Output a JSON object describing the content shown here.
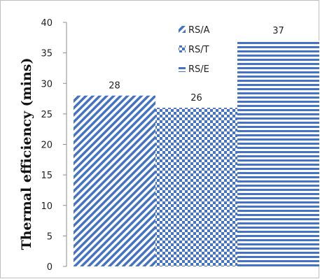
{
  "chart_data": {
    "type": "bar",
    "title": "",
    "xlabel": "",
    "ylabel": "Thermal efficiency (mins)",
    "categories": [
      "RS/A",
      "RS/T",
      "RS/E"
    ],
    "values": [
      28,
      26,
      37
    ],
    "ylim": [
      0,
      40
    ],
    "yticks": [
      0,
      5,
      10,
      15,
      20,
      25,
      30,
      35,
      40
    ],
    "data_labels": [
      "28",
      "26",
      "37"
    ],
    "grid": false,
    "legend_position": "top-center",
    "legend": [
      {
        "label": "RS/A",
        "pattern": "diagonal-stripes"
      },
      {
        "label": "RS/T",
        "pattern": "checkerboard"
      },
      {
        "label": "RS/E",
        "pattern": "horizontal-stripes"
      }
    ],
    "colors": {
      "bar": "#4472c4",
      "background": "#ffffff"
    }
  }
}
